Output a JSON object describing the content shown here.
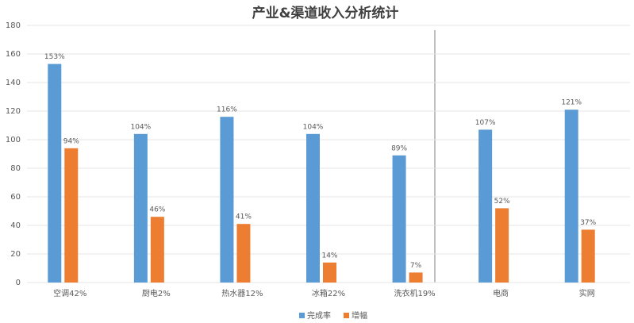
{
  "chart_data": {
    "type": "bar",
    "title": "产业&渠道收入分析统计",
    "categories": [
      "空调42%",
      "厨电2%",
      "热水器12%",
      "冰箱22%",
      "洗衣机19%",
      "电商",
      "实网"
    ],
    "series": [
      {
        "name": "完成率",
        "color": "#5b9bd5",
        "values": [
          153,
          104,
          116,
          104,
          89,
          107,
          121
        ],
        "value_labels": [
          "153%",
          "104%",
          "116%",
          "104%",
          "89%",
          "107%",
          "121%"
        ]
      },
      {
        "name": "增幅",
        "color": "#ed7d31",
        "values": [
          94,
          46,
          41,
          14,
          7,
          52,
          37
        ],
        "value_labels": [
          "94%",
          "46%",
          "41%",
          "14%",
          "7%",
          "52%",
          "37%"
        ]
      }
    ],
    "ylim": [
      0,
      180
    ],
    "yticks": [
      0,
      20,
      40,
      60,
      80,
      100,
      120,
      140,
      160,
      180
    ],
    "grid": true,
    "legend": "bottom"
  }
}
